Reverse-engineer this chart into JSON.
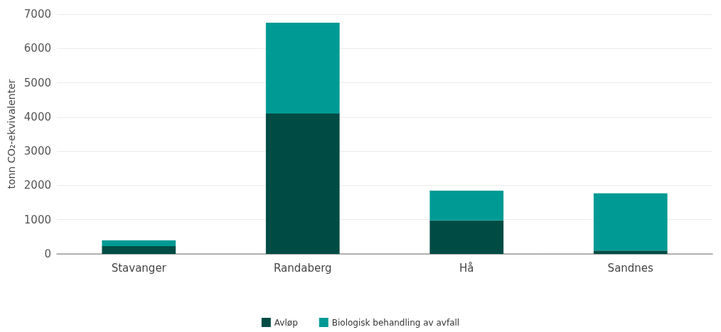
{
  "chart_data": {
    "type": "bar",
    "stacked": true,
    "ylabel": "tonn CO₂-ekvivalenter",
    "categories": [
      "Stavanger",
      "Randaberg",
      "Hå",
      "Sandnes"
    ],
    "series": [
      {
        "name": "Avløp",
        "color": "#004c45",
        "values": [
          230,
          4100,
          980,
          100
        ]
      },
      {
        "name": "Biologisk behandling av avfall",
        "color": "#009a94",
        "values": [
          170,
          2650,
          870,
          1670
        ]
      }
    ],
    "ylim": [
      0,
      7000
    ],
    "yticks": [
      0,
      1000,
      2000,
      3000,
      4000,
      5000,
      6000,
      7000
    ],
    "grid": "y",
    "legend": "bottom"
  }
}
